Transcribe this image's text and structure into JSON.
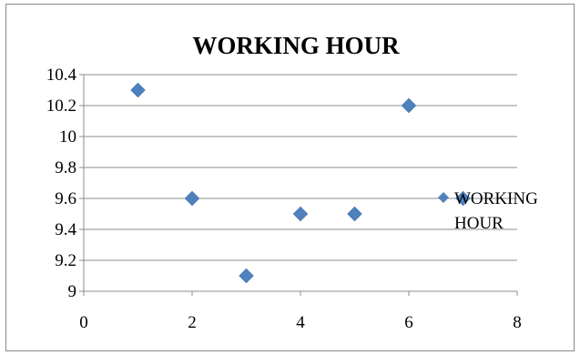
{
  "chart_data": {
    "type": "scatter",
    "title": "WORKING HOUR",
    "xlabel": "",
    "ylabel": "",
    "xlim": [
      0,
      8
    ],
    "ylim": [
      9,
      10.4
    ],
    "x_ticks": [
      "0",
      "2",
      "4",
      "6",
      "8"
    ],
    "y_ticks": [
      "9",
      "9.2",
      "9.4",
      "9.6",
      "9.8",
      "10",
      "10.2",
      "10.4"
    ],
    "grid": "horizontal",
    "legend_position": "right",
    "series": [
      {
        "name": "WORKING HOUR",
        "color": "#4f81bd",
        "marker": "diamond",
        "points": [
          {
            "x": 1,
            "y": 10.3
          },
          {
            "x": 2,
            "y": 9.6
          },
          {
            "x": 3,
            "y": 9.1
          },
          {
            "x": 4,
            "y": 9.5
          },
          {
            "x": 5,
            "y": 9.5
          },
          {
            "x": 6,
            "y": 10.2
          },
          {
            "x": 7,
            "y": 9.6
          }
        ]
      }
    ]
  }
}
